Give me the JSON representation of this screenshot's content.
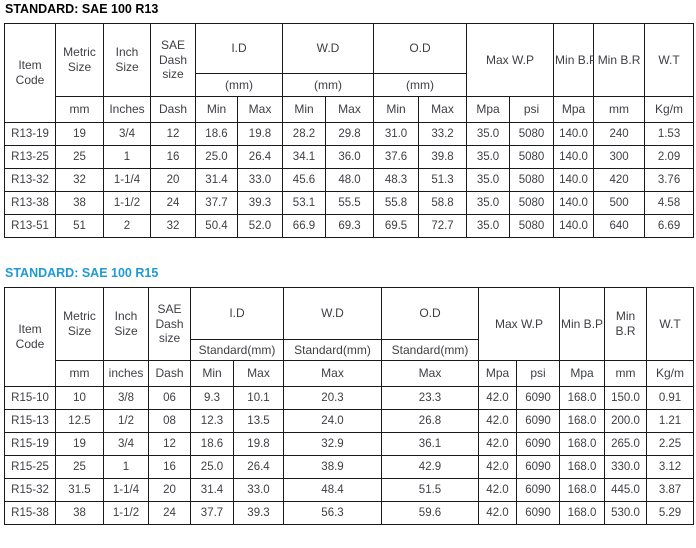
{
  "colors": {
    "r13_title": "#000000",
    "r15_title": "#1F9AD6",
    "table_border": "#1A1A1A",
    "table_text": "#3D3F44"
  },
  "tables": [
    {
      "title": "STANDARD: SAE 100 R13",
      "header": {
        "item_code": "Item Code",
        "metric_size": "Metric Size",
        "inch_size": "Inch Size",
        "sae_dash_size": "SAE Dash size",
        "id_label": "I.D",
        "wd_label": "W.D",
        "od_label": "O.D",
        "id_sub": "(mm)",
        "wd_sub": "(mm)",
        "od_sub": "(mm)",
        "max_wp": "Max W.P",
        "min_bp": "Min B.P",
        "min_br": "Min B.R",
        "wt": "W.T",
        "units": [
          "mm",
          "Inches",
          "Dash",
          "Min",
          "Max",
          "Min",
          "Max",
          "Min",
          "Max",
          "Mpa",
          "psi",
          "Mpa",
          "mm",
          "Kg/m"
        ]
      },
      "rows": [
        [
          "R13-19",
          "19",
          "3/4",
          "12",
          "18.6",
          "19.8",
          "28.2",
          "29.8",
          "31.0",
          "33.2",
          "35.0",
          "5080",
          "140.0",
          "240",
          "1.53"
        ],
        [
          "R13-25",
          "25",
          "1",
          "16",
          "25.0",
          "26.4",
          "34.1",
          "36.0",
          "37.6",
          "39.8",
          "35.0",
          "5080",
          "140.0",
          "300",
          "2.09"
        ],
        [
          "R13-32",
          "32",
          "1-1/4",
          "20",
          "31.4",
          "33.0",
          "45.6",
          "48.0",
          "48.3",
          "51.3",
          "35.0",
          "5080",
          "140.0",
          "420",
          "3.76"
        ],
        [
          "R13-38",
          "38",
          "1-1/2",
          "24",
          "37.7",
          "39.3",
          "53.1",
          "55.5",
          "55.8",
          "58.8",
          "35.0",
          "5080",
          "140.0",
          "500",
          "4.58"
        ],
        [
          "R13-51",
          "51",
          "2",
          "32",
          "50.4",
          "52.0",
          "66.9",
          "69.3",
          "69.5",
          "72.7",
          "35.0",
          "5080",
          "140.0",
          "640",
          "6.69"
        ]
      ]
    },
    {
      "title": "STANDARD: SAE 100 R15",
      "header": {
        "item_code": "Item Code",
        "metric_size": "Metric Size",
        "inch_size": "Inch Size",
        "sae_dash_size": "SAE Dash size",
        "id_label": "I.D",
        "wd_label": "W.D",
        "od_label": "O.D",
        "id_sub": "Standard(mm)",
        "wd_sub": "Standard(mm)",
        "od_sub": "Standard(mm)",
        "max_wp": "Max W.P",
        "min_bp": "Min B.P",
        "min_br": "Min B.R",
        "wt": "W.T",
        "units": [
          "mm",
          "inches",
          "Dash",
          "Min",
          "Max",
          "Max",
          "Max",
          "Mpa",
          "psi",
          "Mpa",
          "mm",
          "Kg/m"
        ]
      },
      "rows": [
        [
          "R15-10",
          "10",
          "3/8",
          "06",
          "9.3",
          "10.1",
          "20.3",
          "23.3",
          "42.0",
          "6090",
          "168.0",
          "150.0",
          "0.91"
        ],
        [
          "R15-13",
          "12.5",
          "1/2",
          "08",
          "12.3",
          "13.5",
          "24.0",
          "26.8",
          "42.0",
          "6090",
          "168.0",
          "200.0",
          "1.21"
        ],
        [
          "R15-19",
          "19",
          "3/4",
          "12",
          "18.6",
          "19.8",
          "32.9",
          "36.1",
          "42.0",
          "6090",
          "168.0",
          "265.0",
          "2.25"
        ],
        [
          "R15-25",
          "25",
          "1",
          "16",
          "25.0",
          "26.4",
          "38.9",
          "42.9",
          "42.0",
          "6090",
          "168.0",
          "330.0",
          "3.12"
        ],
        [
          "R15-32",
          "31.5",
          "1-1/4",
          "20",
          "31.4",
          "33.0",
          "48.4",
          "51.5",
          "42.0",
          "6090",
          "168.0",
          "445.0",
          "3.87"
        ],
        [
          "R15-38",
          "38",
          "1-1/2",
          "24",
          "37.7",
          "39.3",
          "56.3",
          "59.6",
          "42.0",
          "6090",
          "168.0",
          "530.0",
          "5.29"
        ]
      ]
    }
  ]
}
